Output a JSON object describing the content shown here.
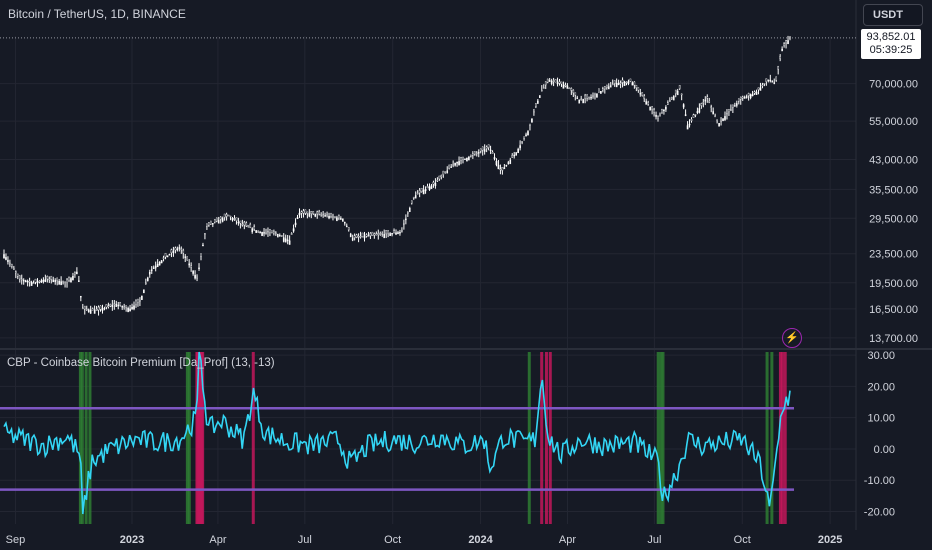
{
  "header": {
    "symbol_title": "Bitcoin / TetherUS, 1D, BINANCE",
    "currency_button": "USDT"
  },
  "price_tag": {
    "price": "93,852.01",
    "countdown": "05:39:25"
  },
  "indicator": {
    "label": "CBP - Coinbase Bitcoin Premium [Da_Prof] (13, -13)",
    "alert_icon": "lightning-icon"
  },
  "colors": {
    "background": "#161a25",
    "candle": "#ffffff",
    "premium_line": "#33d6f5",
    "threshold_line": "#7e57c2",
    "green_band": "#2e7d32",
    "magenta_band": "#c2185b",
    "axis_text": "#d1d4dc"
  },
  "x_axis_labels": [
    "Sep",
    "2023",
    "Apr",
    "Jul",
    "Oct",
    "2024",
    "Apr",
    "Jul",
    "Oct",
    "2025"
  ],
  "chart_data": [
    {
      "type": "line",
      "title": "Bitcoin / TetherUS, 1D, BINANCE",
      "scale": "log",
      "y_ticks": [
        "70,000.00",
        "55,000.00",
        "43,000.00",
        "35,500.00",
        "29,500.00",
        "23,500.00",
        "19,500.00",
        "16,500.00",
        "13,700.00"
      ],
      "y_tick_values": [
        70000,
        55000,
        43000,
        35500,
        29500,
        23500,
        19500,
        16500,
        13700
      ],
      "ylim": [
        13000,
        95000
      ],
      "last_price": 93852.01,
      "x": [
        "2022-08-20",
        "2022-09-05",
        "2022-09-20",
        "2022-10-05",
        "2022-10-25",
        "2022-11-05",
        "2022-11-10",
        "2022-11-25",
        "2022-12-15",
        "2022-12-30",
        "2023-01-10",
        "2023-01-20",
        "2023-02-05",
        "2023-02-20",
        "2023-03-10",
        "2023-03-13",
        "2023-03-20",
        "2023-04-12",
        "2023-04-25",
        "2023-05-15",
        "2023-06-01",
        "2023-06-15",
        "2023-06-25",
        "2023-07-15",
        "2023-08-10",
        "2023-08-20",
        "2023-09-15",
        "2023-10-10",
        "2023-10-24",
        "2023-11-15",
        "2023-12-05",
        "2023-12-20",
        "2024-01-10",
        "2024-01-23",
        "2024-02-08",
        "2024-02-20",
        "2024-03-05",
        "2024-03-13",
        "2024-04-01",
        "2024-04-13",
        "2024-04-25",
        "2024-05-20",
        "2024-06-07",
        "2024-06-25",
        "2024-07-05",
        "2024-07-28",
        "2024-08-05",
        "2024-08-25",
        "2024-09-06",
        "2024-09-30",
        "2024-10-15",
        "2024-10-29",
        "2024-11-05",
        "2024-11-12",
        "2024-11-20"
      ],
      "y": [
        23400,
        20000,
        19500,
        20000,
        19500,
        21000,
        16500,
        16300,
        17000,
        16500,
        17400,
        21000,
        23000,
        24500,
        20000,
        22000,
        28000,
        30000,
        28500,
        27000,
        26800,
        25500,
        30500,
        30300,
        29400,
        26000,
        26500,
        27000,
        34000,
        37000,
        42000,
        43700,
        46500,
        39800,
        45200,
        51700,
        67000,
        71500,
        69000,
        63000,
        64000,
        70000,
        71000,
        61000,
        56000,
        68000,
        53000,
        64000,
        54000,
        63500,
        66000,
        72000,
        70000,
        88000,
        93852
      ]
    },
    {
      "type": "line",
      "title": "CBP - Coinbase Bitcoin Premium [Da_Prof] (13, -13)",
      "y_ticks": [
        "30.00",
        "20.00",
        "10.00",
        "0.00",
        "-10.00",
        "-20.00"
      ],
      "y_tick_values": [
        30,
        20,
        10,
        0,
        -10,
        -20
      ],
      "ylim": [
        -24,
        31
      ],
      "upper_threshold": 13,
      "lower_threshold": -13,
      "x": [
        "2022-08-20",
        "2022-09-10",
        "2022-10-01",
        "2022-10-25",
        "2022-11-08",
        "2022-11-10",
        "2022-11-12",
        "2022-11-20",
        "2022-12-10",
        "2023-01-05",
        "2023-01-25",
        "2023-02-20",
        "2023-03-10",
        "2023-03-12",
        "2023-03-16",
        "2023-03-22",
        "2023-04-05",
        "2023-04-28",
        "2023-05-08",
        "2023-05-20",
        "2023-06-15",
        "2023-07-10",
        "2023-08-05",
        "2023-08-18",
        "2023-09-05",
        "2023-10-01",
        "2023-10-25",
        "2023-11-20",
        "2023-12-15",
        "2024-01-05",
        "2024-01-11",
        "2024-01-25",
        "2024-02-15",
        "2024-02-27",
        "2024-03-05",
        "2024-03-12",
        "2024-03-25",
        "2024-04-15",
        "2024-05-10",
        "2024-06-10",
        "2024-07-05",
        "2024-07-10",
        "2024-07-25",
        "2024-08-05",
        "2024-08-20",
        "2024-09-10",
        "2024-10-01",
        "2024-10-20",
        "2024-10-30",
        "2024-11-05",
        "2024-11-12",
        "2024-11-20"
      ],
      "y": [
        5,
        3,
        1,
        4,
        -2,
        -23,
        -18,
        -4,
        0,
        3,
        2,
        3,
        10,
        38,
        22,
        6,
        9,
        3,
        18,
        5,
        2,
        1,
        3,
        -5,
        1,
        3,
        2,
        4,
        1,
        3,
        -6,
        4,
        2,
        3,
        24,
        4,
        -2,
        3,
        1,
        2,
        -4,
        -16,
        -7,
        3,
        1,
        2,
        3,
        -5,
        -20,
        -4,
        14,
        17
      ],
      "green_bands": [
        "2022-11-08",
        "2022-11-10",
        "2022-11-14",
        "2022-11-18",
        "2023-02-28",
        "2023-03-02",
        "2024-02-21",
        "2024-07-05",
        "2024-07-08",
        "2024-07-10",
        "2024-10-27",
        "2024-11-01"
      ],
      "magenta_bands": [
        "2023-03-10",
        "2023-03-11",
        "2023-03-12",
        "2023-03-13",
        "2023-03-14",
        "2023-03-15",
        "2023-03-16",
        "2023-05-08",
        "2024-03-05",
        "2024-03-10",
        "2024-03-14",
        "2024-11-10",
        "2024-11-12",
        "2024-11-15"
      ]
    }
  ]
}
